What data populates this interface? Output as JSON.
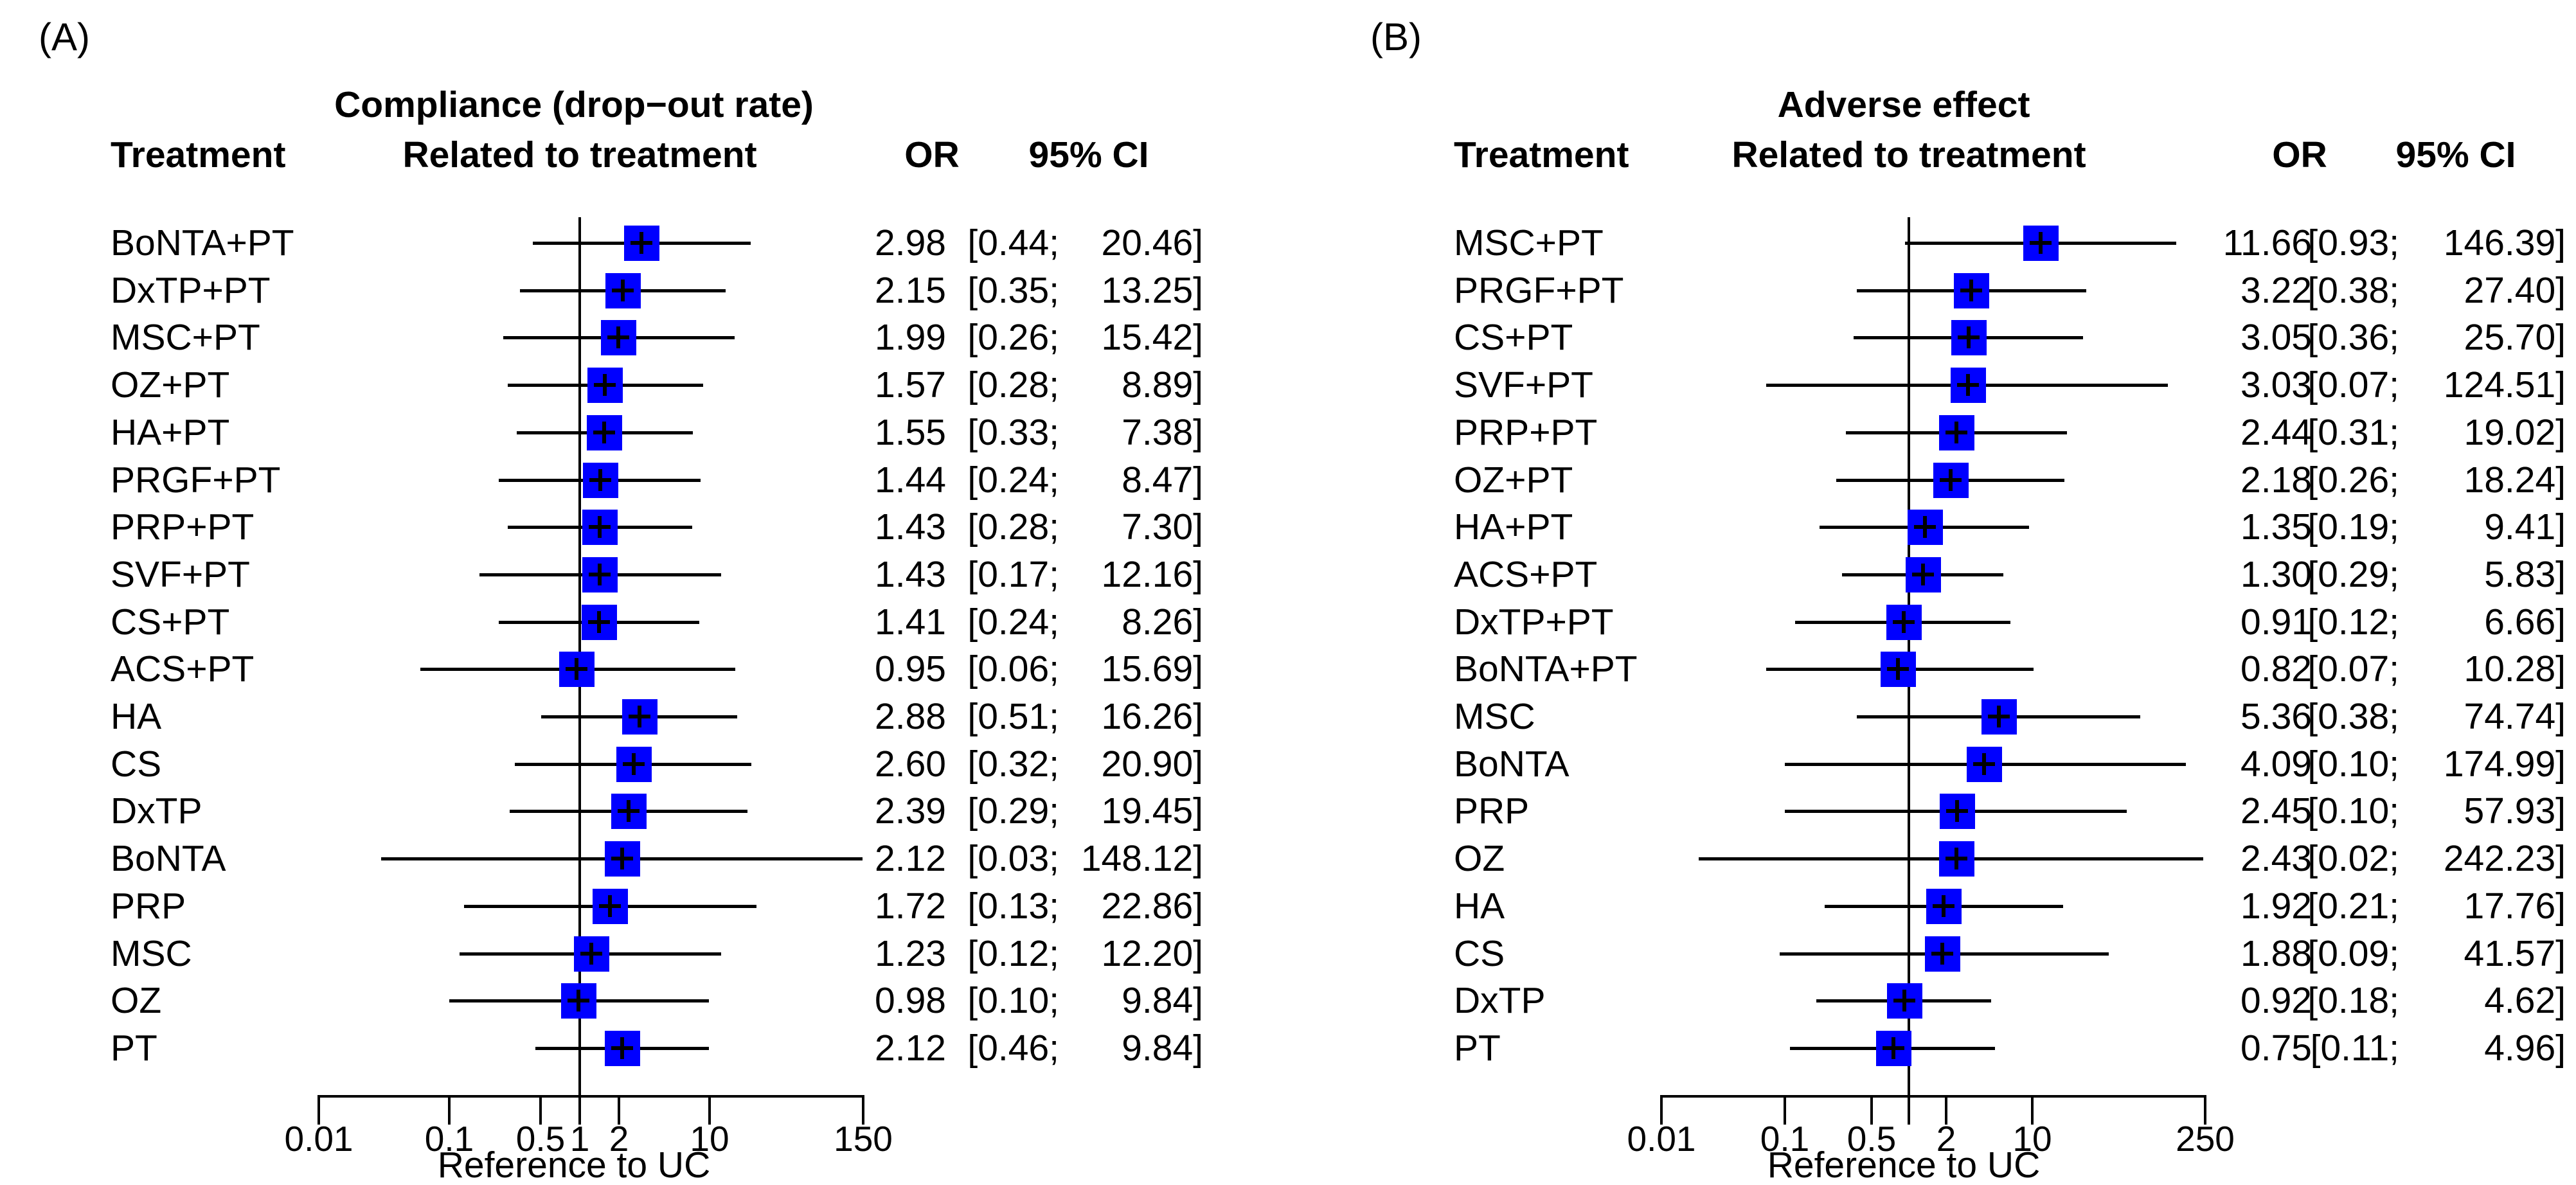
{
  "colors": {
    "square": "#0000ff",
    "line": "#000000",
    "text": "#000000",
    "background": "#ffffff"
  },
  "chart_data": [
    {
      "type": "forest",
      "panel_label": "(A)",
      "title": "Compliance (drop−out rate)",
      "subtitle": "Related to treatment",
      "columns": {
        "treatment": "Treatment",
        "or": "OR",
        "ci": "95% CI"
      },
      "xlabel": "Reference to UC",
      "axis": {
        "scale": "log",
        "min": 0.01,
        "max": 150,
        "reference": 1,
        "ticks": [
          0.01,
          0.1,
          0.5,
          1,
          2,
          10,
          150
        ],
        "tick_labels": [
          "0.01",
          "0.1",
          "0.5",
          "1",
          "2",
          "10",
          "150"
        ]
      },
      "rows": [
        {
          "treatment": "BoNTA+PT",
          "or": 2.98,
          "ci_low": 0.44,
          "ci_high": 20.46
        },
        {
          "treatment": "DxTP+PT",
          "or": 2.15,
          "ci_low": 0.35,
          "ci_high": 13.25
        },
        {
          "treatment": "MSC+PT",
          "or": 1.99,
          "ci_low": 0.26,
          "ci_high": 15.42
        },
        {
          "treatment": "OZ+PT",
          "or": 1.57,
          "ci_low": 0.28,
          "ci_high": 8.89
        },
        {
          "treatment": "HA+PT",
          "or": 1.55,
          "ci_low": 0.33,
          "ci_high": 7.38
        },
        {
          "treatment": "PRGF+PT",
          "or": 1.44,
          "ci_low": 0.24,
          "ci_high": 8.47
        },
        {
          "treatment": "PRP+PT",
          "or": 1.43,
          "ci_low": 0.28,
          "ci_high": 7.3
        },
        {
          "treatment": "SVF+PT",
          "or": 1.43,
          "ci_low": 0.17,
          "ci_high": 12.16
        },
        {
          "treatment": "CS+PT",
          "or": 1.41,
          "ci_low": 0.24,
          "ci_high": 8.26
        },
        {
          "treatment": "ACS+PT",
          "or": 0.95,
          "ci_low": 0.06,
          "ci_high": 15.69
        },
        {
          "treatment": "HA",
          "or": 2.88,
          "ci_low": 0.51,
          "ci_high": 16.26
        },
        {
          "treatment": "CS",
          "or": 2.6,
          "ci_low": 0.32,
          "ci_high": 20.9
        },
        {
          "treatment": "DxTP",
          "or": 2.39,
          "ci_low": 0.29,
          "ci_high": 19.45
        },
        {
          "treatment": "BoNTA",
          "or": 2.12,
          "ci_low": 0.03,
          "ci_high": 148.12
        },
        {
          "treatment": "PRP",
          "or": 1.72,
          "ci_low": 0.13,
          "ci_high": 22.86
        },
        {
          "treatment": "MSC",
          "or": 1.23,
          "ci_low": 0.12,
          "ci_high": 12.2
        },
        {
          "treatment": "OZ",
          "or": 0.98,
          "ci_low": 0.1,
          "ci_high": 9.84
        },
        {
          "treatment": "PT",
          "or": 2.12,
          "ci_low": 0.46,
          "ci_high": 9.84
        }
      ]
    },
    {
      "type": "forest",
      "panel_label": "(B)",
      "title": "Adverse effect",
      "subtitle": "Related to treatment",
      "columns": {
        "treatment": "Treatment",
        "or": "OR",
        "ci": "95% CI"
      },
      "xlabel": "Reference to UC",
      "axis": {
        "scale": "log",
        "min": 0.01,
        "max": 250,
        "reference": 1,
        "ticks": [
          0.01,
          0.1,
          0.5,
          1,
          2,
          10,
          250
        ],
        "tick_labels": [
          "0.01",
          "0.1",
          "0.5",
          "",
          "2",
          "10",
          "250"
        ]
      },
      "rows": [
        {
          "treatment": "MSC+PT",
          "or": 11.66,
          "ci_low": 0.93,
          "ci_high": 146.39
        },
        {
          "treatment": "PRGF+PT",
          "or": 3.22,
          "ci_low": 0.38,
          "ci_high": 27.4
        },
        {
          "treatment": "CS+PT",
          "or": 3.05,
          "ci_low": 0.36,
          "ci_high": 25.7
        },
        {
          "treatment": "SVF+PT",
          "or": 3.03,
          "ci_low": 0.07,
          "ci_high": 124.51
        },
        {
          "treatment": "PRP+PT",
          "or": 2.44,
          "ci_low": 0.31,
          "ci_high": 19.02
        },
        {
          "treatment": "OZ+PT",
          "or": 2.18,
          "ci_low": 0.26,
          "ci_high": 18.24
        },
        {
          "treatment": "HA+PT",
          "or": 1.35,
          "ci_low": 0.19,
          "ci_high": 9.41
        },
        {
          "treatment": "ACS+PT",
          "or": 1.3,
          "ci_low": 0.29,
          "ci_high": 5.83
        },
        {
          "treatment": "DxTP+PT",
          "or": 0.91,
          "ci_low": 0.12,
          "ci_high": 6.66
        },
        {
          "treatment": "BoNTA+PT",
          "or": 0.82,
          "ci_low": 0.07,
          "ci_high": 10.28
        },
        {
          "treatment": "MSC",
          "or": 5.36,
          "ci_low": 0.38,
          "ci_high": 74.74
        },
        {
          "treatment": "BoNTA",
          "or": 4.09,
          "ci_low": 0.1,
          "ci_high": 174.99
        },
        {
          "treatment": "PRP",
          "or": 2.45,
          "ci_low": 0.1,
          "ci_high": 57.93
        },
        {
          "treatment": "OZ",
          "or": 2.43,
          "ci_low": 0.02,
          "ci_high": 242.23
        },
        {
          "treatment": "HA",
          "or": 1.92,
          "ci_low": 0.21,
          "ci_high": 17.76
        },
        {
          "treatment": "CS",
          "or": 1.88,
          "ci_low": 0.09,
          "ci_high": 41.57
        },
        {
          "treatment": "DxTP",
          "or": 0.92,
          "ci_low": 0.18,
          "ci_high": 4.62
        },
        {
          "treatment": "PT",
          "or": 0.75,
          "ci_low": 0.11,
          "ci_high": 4.96
        }
      ]
    }
  ]
}
